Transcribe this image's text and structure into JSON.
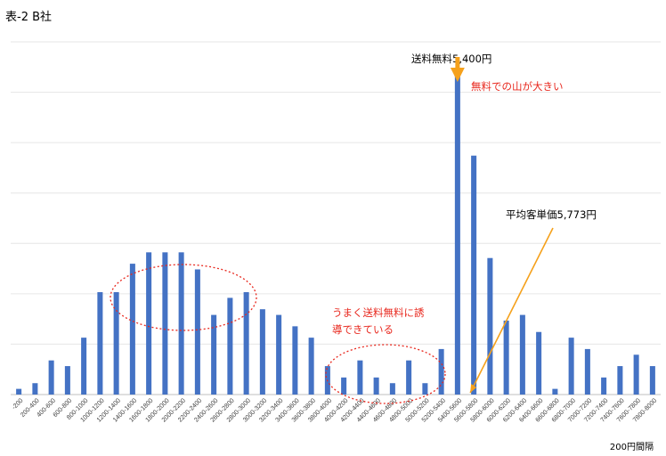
{
  "chart_data": {
    "type": "bar",
    "title": "表-2 B社",
    "x_unit_note": "200円間隔",
    "grid": true,
    "ylim": [
      0,
      62
    ],
    "categories": [
      "-200",
      "200-400",
      "400-600",
      "600-800",
      "800-1000",
      "1000-1200",
      "1200-1400",
      "1400-1600",
      "1600-1800",
      "1800-2000",
      "2000-2200",
      "2200-2400",
      "2400-2600",
      "2600-2800",
      "2800-3000",
      "3000-3200",
      "3200-3400",
      "3400-3600",
      "3600-3800",
      "3800-4000",
      "4000-4200",
      "4200-4400",
      "4400-4600",
      "4600-4800",
      "4800-5000",
      "5000-5200",
      "5200-5400",
      "5400-5600",
      "5600-5800",
      "5800-6000",
      "6000-6200",
      "6200-6400",
      "6400-6600",
      "6600-6800",
      "6800-7000",
      "7000-7200",
      "7200-7400",
      "7400-7600",
      "7600-7800",
      "7800-8000"
    ],
    "values": [
      1,
      2,
      6,
      5,
      10,
      18,
      18,
      23,
      25,
      25,
      25,
      22,
      14,
      17,
      18,
      15,
      14,
      12,
      10,
      5,
      3,
      6,
      3,
      2,
      6,
      2,
      8,
      57,
      42,
      24,
      13,
      14,
      11,
      1,
      10,
      8,
      3,
      5,
      7,
      5
    ],
    "color": "#4472C4",
    "annotations": {
      "free_shipping": "送料無料5,400円",
      "free_peak": "無料での山が大きい",
      "average": "平均客単価5,773円",
      "induce_line1": "うまく送料無料に誘",
      "induce_line2": "導できている"
    },
    "annotation_colors": {
      "arrow": "#F5A11C",
      "red": "#E8281E"
    }
  }
}
